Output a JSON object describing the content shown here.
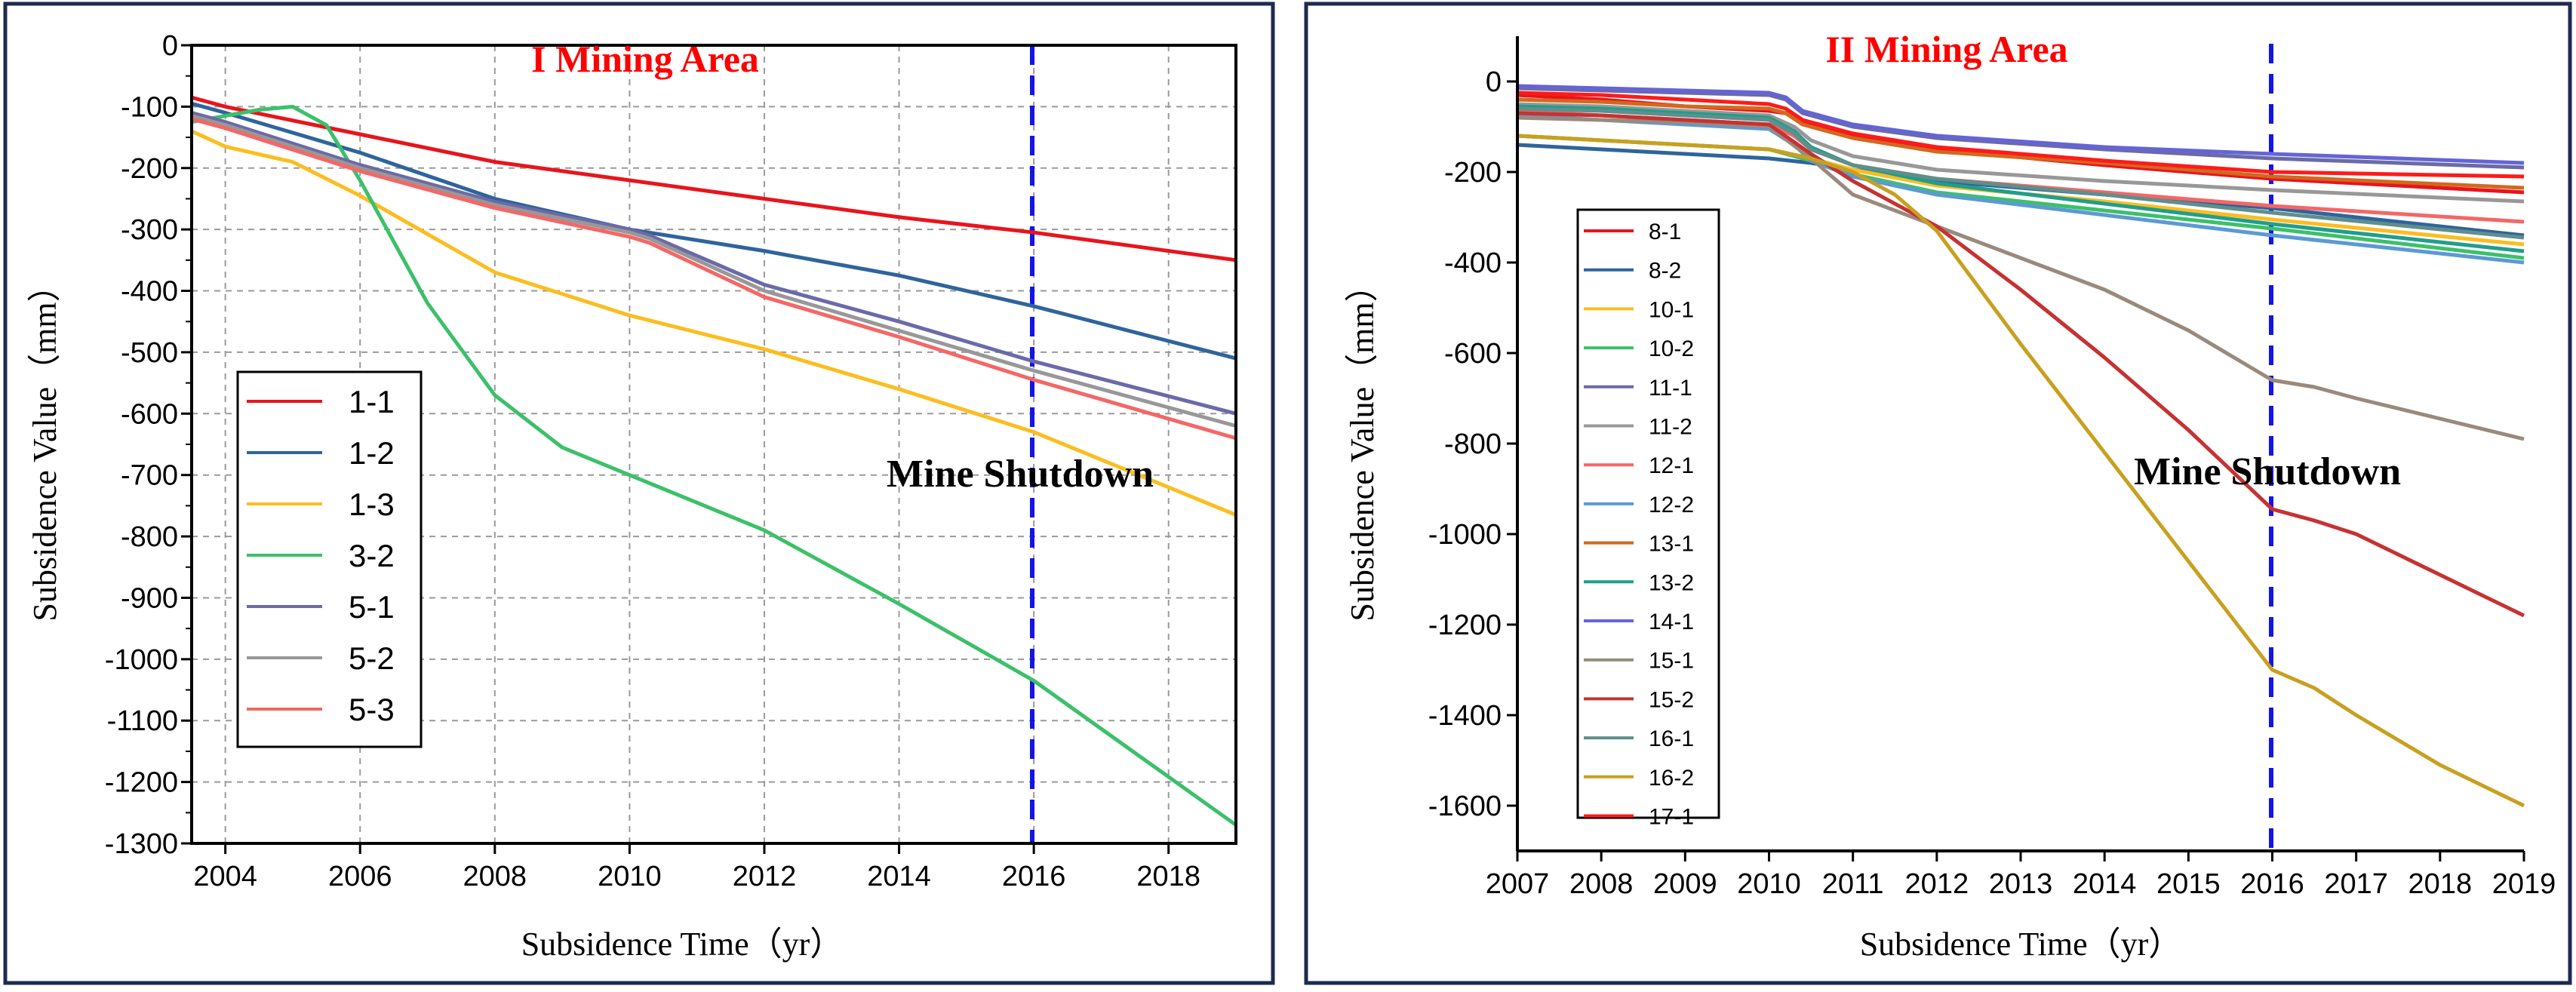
{
  "chart_data": [
    {
      "type": "line",
      "title": "I Mining Area",
      "xlabel": "Subsidence Time（yr）",
      "ylabel": "Subsidence Value（mm）",
      "xlim": [
        2003.5,
        2019
      ],
      "ylim": [
        -1300,
        0
      ],
      "xticks": [
        "2004",
        "2006",
        "2008",
        "2010",
        "2012",
        "2014",
        "2016",
        "2018"
      ],
      "yticks": [
        "0",
        "-100",
        "-200",
        "-300",
        "-400",
        "-500",
        "-600",
        "-700",
        "-800",
        "-900",
        "-1000",
        "-1100",
        "-1200",
        "-1300"
      ],
      "grid": true,
      "legend_position": "left",
      "annotation": {
        "text": "Mine Shutdown",
        "x": 2016
      },
      "series": [
        {
          "name": "1-1",
          "color": "#e8141d",
          "x": [
            2003.5,
            2004,
            2006,
            2008,
            2010,
            2012,
            2014,
            2016,
            2019
          ],
          "y": [
            -85,
            -100,
            -145,
            -190,
            -220,
            -250,
            -280,
            -305,
            -350
          ]
        },
        {
          "name": "1-2",
          "color": "#2f649c",
          "x": [
            2003.5,
            2004,
            2006,
            2008,
            2010,
            2012,
            2014,
            2016,
            2019
          ],
          "y": [
            -95,
            -110,
            -175,
            -250,
            -300,
            -335,
            -375,
            -425,
            -510
          ]
        },
        {
          "name": "1-3",
          "color": "#fbbd20",
          "x": [
            2003.5,
            2004,
            2005,
            2006,
            2008,
            2010,
            2012,
            2014,
            2016,
            2019
          ],
          "y": [
            -140,
            -165,
            -190,
            -245,
            -370,
            -440,
            -495,
            -560,
            -630,
            -765
          ]
        },
        {
          "name": "3-2",
          "color": "#3cc06a",
          "x": [
            2003.5,
            2004,
            2004.5,
            2005,
            2005.5,
            2006,
            2007,
            2008,
            2009,
            2010,
            2012,
            2014,
            2016,
            2019
          ],
          "y": [
            -125,
            -115,
            -105,
            -100,
            -130,
            -220,
            -420,
            -570,
            -655,
            -700,
            -790,
            -910,
            -1035,
            -1270
          ]
        },
        {
          "name": "5-1",
          "color": "#6b6aa8",
          "x": [
            2003.5,
            2004,
            2006,
            2008,
            2010,
            2010.3,
            2012,
            2014,
            2016,
            2019
          ],
          "y": [
            -110,
            -125,
            -195,
            -255,
            -300,
            -310,
            -390,
            -450,
            -515,
            -600
          ]
        },
        {
          "name": "5-2",
          "color": "#989898",
          "x": [
            2003.5,
            2004,
            2006,
            2008,
            2010,
            2010.3,
            2012,
            2014,
            2016,
            2019
          ],
          "y": [
            -115,
            -130,
            -200,
            -260,
            -305,
            -315,
            -400,
            -465,
            -530,
            -620
          ]
        },
        {
          "name": "5-3",
          "color": "#f46767",
          "x": [
            2003.5,
            2004,
            2006,
            2008,
            2010,
            2010.3,
            2012,
            2014,
            2016,
            2019
          ],
          "y": [
            -120,
            -135,
            -205,
            -265,
            -312,
            -322,
            -410,
            -475,
            -545,
            -640
          ]
        }
      ]
    },
    {
      "type": "line",
      "title": "II Mining Area",
      "xlabel": "Subsidence Time（yr）",
      "ylabel": "Subsidence Value（mm）",
      "xlim": [
        2007,
        2019
      ],
      "ylim": [
        -1700,
        100
      ],
      "xticks": [
        "2007",
        "2008",
        "2009",
        "2010",
        "2011",
        "2012",
        "2013",
        "2014",
        "2015",
        "2016",
        "2017",
        "2018",
        "2019"
      ],
      "yticks": [
        "0",
        "-200",
        "-400",
        "-600",
        "-800",
        "-1000",
        "-1200",
        "-1400",
        "-1600"
      ],
      "grid": false,
      "legend_position": "left",
      "annotation": {
        "text": "Mine Shutdown",
        "x": 2016
      },
      "series": [
        {
          "name": "8-1",
          "color": "#e8141d",
          "x": [
            2007,
            2008,
            2009,
            2010,
            2010.2,
            2010.4,
            2011,
            2012,
            2014,
            2016,
            2019
          ],
          "y": [
            -30,
            -40,
            -55,
            -65,
            -70,
            -90,
            -120,
            -150,
            -185,
            -215,
            -245
          ]
        },
        {
          "name": "8-2",
          "color": "#2f649c",
          "x": [
            2007,
            2008,
            2009,
            2010,
            2010.5,
            2011,
            2012,
            2014,
            2016,
            2019
          ],
          "y": [
            -140,
            -150,
            -160,
            -170,
            -180,
            -195,
            -220,
            -250,
            -280,
            -340
          ]
        },
        {
          "name": "10-1",
          "color": "#fbbd20",
          "x": [
            2007,
            2008,
            2009,
            2010,
            2010.5,
            2011,
            2012,
            2014,
            2016,
            2019
          ],
          "y": [
            -120,
            -130,
            -140,
            -150,
            -170,
            -195,
            -230,
            -265,
            -305,
            -360
          ]
        },
        {
          "name": "10-2",
          "color": "#3cc06a",
          "x": [
            2007,
            2008,
            2009,
            2010,
            2010.5,
            2011,
            2012,
            2014,
            2016,
            2019
          ],
          "y": [
            -120,
            -130,
            -140,
            -150,
            -175,
            -205,
            -245,
            -285,
            -325,
            -390
          ]
        },
        {
          "name": "11-1",
          "color": "#6b6aa8",
          "x": [
            2007,
            2008,
            2009,
            2010,
            2010.2,
            2010.4,
            2011,
            2012,
            2014,
            2016,
            2019
          ],
          "y": [
            -15,
            -20,
            -25,
            -30,
            -40,
            -70,
            -100,
            -125,
            -150,
            -170,
            -190
          ]
        },
        {
          "name": "11-2",
          "color": "#989898",
          "x": [
            2007,
            2008,
            2009,
            2010,
            2010.3,
            2010.5,
            2011,
            2012,
            2014,
            2016,
            2019
          ],
          "y": [
            -50,
            -55,
            -65,
            -75,
            -100,
            -130,
            -165,
            -195,
            -220,
            -240,
            -265
          ]
        },
        {
          "name": "12-1",
          "color": "#f46767",
          "x": [
            2007,
            2008,
            2009,
            2010,
            2010.3,
            2010.5,
            2011,
            2012,
            2014,
            2016,
            2019
          ],
          "y": [
            -65,
            -75,
            -85,
            -95,
            -120,
            -150,
            -185,
            -215,
            -245,
            -275,
            -310
          ]
        },
        {
          "name": "12-2",
          "color": "#5b9ad4",
          "x": [
            2007,
            2008,
            2009,
            2010,
            2010.3,
            2010.5,
            2011,
            2012,
            2014,
            2016,
            2019
          ],
          "y": [
            -75,
            -85,
            -95,
            -105,
            -140,
            -175,
            -210,
            -250,
            -295,
            -340,
            -400
          ]
        },
        {
          "name": "13-1",
          "color": "#d2691e",
          "x": [
            2007,
            2008,
            2009,
            2010,
            2010.2,
            2010.4,
            2011,
            2012,
            2014,
            2016,
            2019
          ],
          "y": [
            -40,
            -45,
            -55,
            -60,
            -70,
            -95,
            -125,
            -155,
            -180,
            -210,
            -235
          ]
        },
        {
          "name": "13-2",
          "color": "#1f9e8c",
          "x": [
            2007,
            2008,
            2009,
            2010,
            2010.3,
            2010.5,
            2011,
            2012,
            2014,
            2016,
            2019
          ],
          "y": [
            -55,
            -60,
            -70,
            -80,
            -110,
            -145,
            -185,
            -225,
            -270,
            -315,
            -375
          ]
        },
        {
          "name": "14-1",
          "color": "#6464d8",
          "x": [
            2007,
            2008,
            2009,
            2010,
            2010.2,
            2010.4,
            2011,
            2012,
            2014,
            2016,
            2019
          ],
          "y": [
            -10,
            -15,
            -20,
            -25,
            -35,
            -65,
            -95,
            -120,
            -145,
            -160,
            -180
          ]
        },
        {
          "name": "15-1",
          "color": "#9a8a7c",
          "x": [
            2007,
            2008,
            2009,
            2010,
            2010.5,
            2011,
            2012,
            2013,
            2014,
            2015,
            2016,
            2016.5,
            2017,
            2018,
            2019
          ],
          "y": [
            -80,
            -85,
            -90,
            -100,
            -170,
            -250,
            -320,
            -390,
            -460,
            -550,
            -660,
            -675,
            -700,
            -745,
            -790
          ]
        },
        {
          "name": "15-2",
          "color": "#c63232",
          "x": [
            2007,
            2008,
            2009,
            2010,
            2010.5,
            2011,
            2012,
            2013,
            2014,
            2015,
            2016,
            2016.5,
            2017,
            2018,
            2019
          ],
          "y": [
            -70,
            -75,
            -85,
            -95,
            -160,
            -220,
            -320,
            -460,
            -610,
            -770,
            -945,
            -970,
            -1000,
            -1090,
            -1180
          ]
        },
        {
          "name": "16-1",
          "color": "#5f8f8c",
          "x": [
            2007,
            2008,
            2009,
            2010,
            2010.3,
            2010.5,
            2011,
            2012,
            2014,
            2016,
            2019
          ],
          "y": [
            -60,
            -65,
            -75,
            -85,
            -115,
            -150,
            -185,
            -215,
            -250,
            -290,
            -345
          ]
        },
        {
          "name": "16-2",
          "color": "#c8a020",
          "x": [
            2007,
            2008,
            2009,
            2010,
            2010.5,
            2011,
            2011.5,
            2012,
            2013,
            2014,
            2015,
            2016,
            2016.5,
            2017,
            2018,
            2019
          ],
          "y": [
            -120,
            -130,
            -140,
            -150,
            -170,
            -200,
            -250,
            -330,
            -580,
            -820,
            -1060,
            -1300,
            -1340,
            -1400,
            -1510,
            -1600
          ]
        },
        {
          "name": "17-1",
          "color": "#ff1a1a",
          "x": [
            2007,
            2008,
            2009,
            2010,
            2010.2,
            2010.4,
            2011,
            2012,
            2014,
            2016,
            2019
          ],
          "y": [
            -25,
            -30,
            -40,
            -50,
            -60,
            -85,
            -115,
            -145,
            -175,
            -200,
            -210
          ]
        }
      ]
    }
  ]
}
